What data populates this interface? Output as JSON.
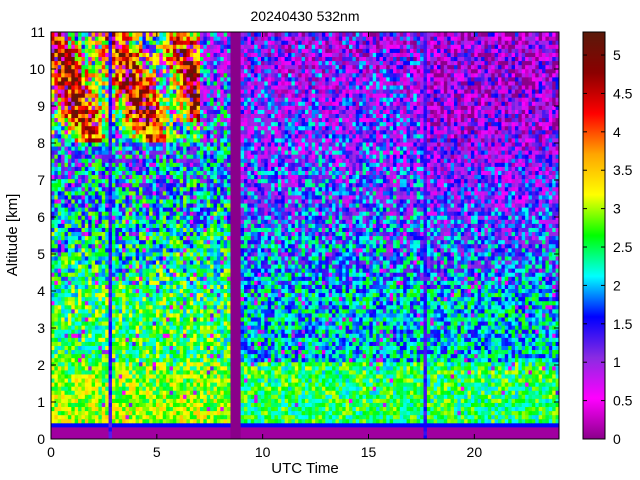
{
  "chart_data": {
    "type": "heatmap",
    "title": "20240430 532nm",
    "xlabel": "UTC Time",
    "ylabel": "Altitude [km]",
    "xlim": [
      0,
      24
    ],
    "ylim": [
      0,
      11
    ],
    "xticks": [
      0,
      5,
      10,
      15,
      20
    ],
    "yticks": [
      0,
      1,
      2,
      3,
      4,
      5,
      6,
      7,
      8,
      9,
      10,
      11
    ],
    "colorbar": {
      "clim": [
        0,
        5.3
      ],
      "ticks": [
        0,
        0.5,
        1,
        1.5,
        2,
        2.5,
        3,
        3.5,
        4,
        4.5,
        5
      ],
      "colormap": [
        "#8a008a",
        "#ff00ff",
        "#8a2be2",
        "#0000ff",
        "#00ffff",
        "#00ff00",
        "#ffff00",
        "#ffa500",
        "#ff0000",
        "#8b0000",
        "#5a1a0a"
      ]
    },
    "annotations": {
      "cloud_layer_km": [
        8,
        11
      ],
      "cloud_time_h": [
        0,
        7
      ],
      "no_data_gap_h": [
        8.4,
        8.9
      ],
      "narrow_gaps_h": [
        2.7,
        17.6
      ]
    }
  }
}
